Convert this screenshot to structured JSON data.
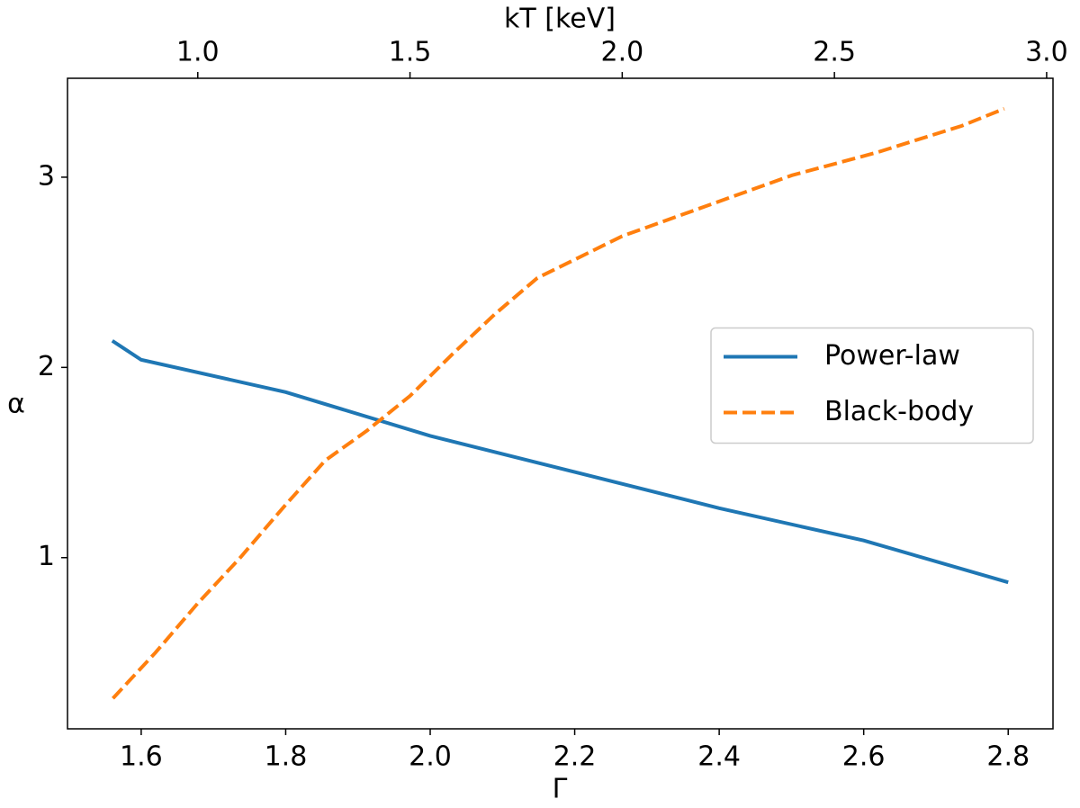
{
  "chart_data": {
    "type": "line",
    "xlabel": "Γ",
    "x2label": "kT [keV]",
    "ylabel": "α",
    "xlim": [
      1.498,
      2.862
    ],
    "xticks": [
      1.6,
      1.8,
      {
        "value": 2,
        "label": "2.0"
      },
      2.2,
      2.4,
      2.6,
      2.8
    ],
    "x2lim": [
      0.693,
      3.015
    ],
    "x2ticks": [
      {
        "value": 1,
        "label": "1.0"
      },
      1.5,
      {
        "value": 2,
        "label": "2.0"
      },
      2.5,
      {
        "value": 3,
        "label": "3.0"
      }
    ],
    "ylim": [
      0.1,
      3.52
    ],
    "yticks": [
      1,
      2,
      3
    ],
    "legend": "center right",
    "series": [
      {
        "name": "Power-law",
        "color": "#1f77b4",
        "dash": "solid",
        "axis": "x",
        "x": [
          1.56,
          1.6,
          1.8,
          2.0,
          2.2,
          2.4,
          2.6,
          2.8
        ],
        "values": [
          2.14,
          2.04,
          1.87,
          1.64,
          1.45,
          1.26,
          1.09,
          0.87
        ]
      },
      {
        "name": "Black-body",
        "color": "#ff7f0e",
        "dash": "dashed",
        "axis": "x2",
        "x": [
          0.8,
          0.9,
          1.0,
          1.1,
          1.2,
          1.3,
          1.4,
          1.5,
          1.6,
          1.7,
          1.8,
          2.0,
          2.2,
          2.4,
          2.6,
          2.8,
          2.9
        ],
        "values": [
          0.26,
          0.5,
          0.76,
          1.0,
          1.26,
          1.51,
          1.67,
          1.85,
          2.07,
          2.28,
          2.47,
          2.69,
          2.85,
          3.01,
          3.13,
          3.27,
          3.36
        ]
      }
    ]
  }
}
